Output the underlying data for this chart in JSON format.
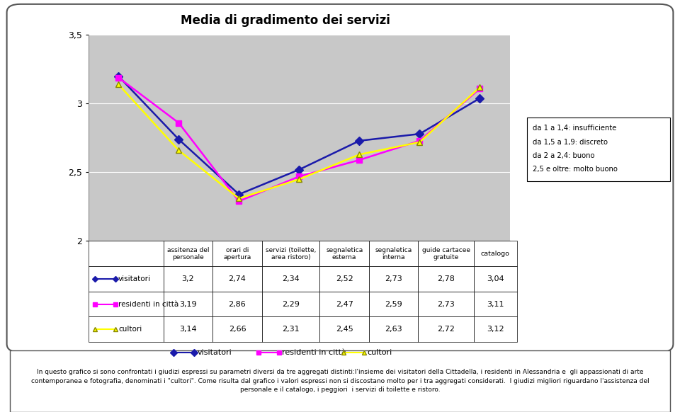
{
  "title": "Media di gradimento dei servizi",
  "categories": [
    "assitenza del\npersonale",
    "orari di\napertura",
    "servizi (toilette,\narea ristoro)",
    "segnaletica\nesterna",
    "segnaletica\ninterna",
    "guide cartacee\ngratuite",
    "catalogo"
  ],
  "series": [
    {
      "name": "visitatori",
      "values": [
        3.2,
        2.74,
        2.34,
        2.52,
        2.73,
        2.78,
        3.04
      ],
      "color": "#1a1aaa",
      "marker": "D",
      "linewidth": 1.8
    },
    {
      "name": "residenti in città",
      "values": [
        3.19,
        2.86,
        2.29,
        2.47,
        2.59,
        2.73,
        3.11
      ],
      "color": "#ff00ff",
      "marker": "s",
      "linewidth": 1.8
    },
    {
      "name": "cultori",
      "values": [
        3.14,
        2.66,
        2.31,
        2.45,
        2.63,
        2.72,
        3.12
      ],
      "color": "#ffff00",
      "marker": "^",
      "linewidth": 1.8
    }
  ],
  "ylim": [
    2.0,
    3.5
  ],
  "yticks": [
    2.0,
    2.5,
    3.0,
    3.5
  ],
  "ytick_labels": [
    "2",
    "2,5",
    "3",
    "3,5"
  ],
  "legend_text": [
    "da 1 a 1,4: insufficiente",
    "da 1,5 a 1,9: discreto",
    "da 2 a 2,4: buono",
    "2,5 e oltre: molto buono"
  ],
  "table_rows": [
    [
      "3,2",
      "2,74",
      "2,34",
      "2,52",
      "2,73",
      "2,78",
      "3,04"
    ],
    [
      "3,19",
      "2,86",
      "2,29",
      "2,47",
      "2,59",
      "2,73",
      "3,11"
    ],
    [
      "3,14",
      "2,66",
      "2,31",
      "2,45",
      "2,63",
      "2,72",
      "3,12"
    ]
  ],
  "series_colors": [
    "#1a1aaa",
    "#ff00ff",
    "#ffff00"
  ],
  "series_markers": [
    "D",
    "s",
    "^"
  ],
  "series_names": [
    "visitatori",
    "residenti in città",
    "cultori"
  ],
  "chart_bg": "#c8c8c8",
  "footer_text": "In questo grafico si sono confrontati i giudizi espressi su parametri diversi da tre aggregati distinti:l'insieme dei visitatori della Cittadella, i residenti in Alessandria e  gli appassionati di arte\ncontemporanea e fotografia, denominati i \"cultori\". Come risulta dal grafico i valori espressi non si discostano molto per i tra aggregati considerati.  I giudizi migliori riguardano l'assistenza del\npersonale e il catalogo, i peggiori  i servizi di toilette e ristoro."
}
